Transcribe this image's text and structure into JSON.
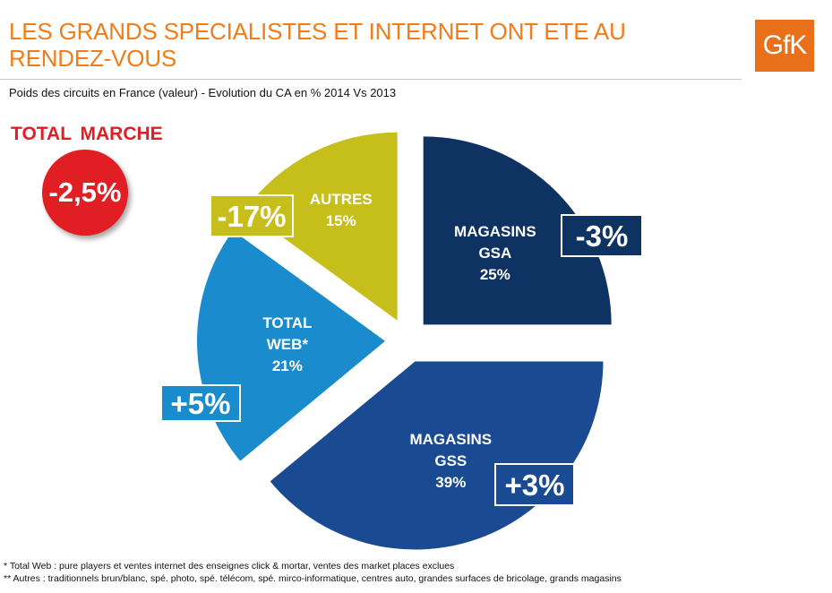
{
  "header": {
    "title_line1": "LES GRANDS SPECIALISTES ET INTERNET ONT ETE AU",
    "title_line2": "RENDEZ-VOUS",
    "logo_text": "GfK",
    "subtitle": "Poids des circuits en France (valeur) - Evolution  du CA en % 2014 Vs 2013"
  },
  "total": {
    "label": "TOTAL MARCHE",
    "value": "-2,5%"
  },
  "chart_data": {
    "type": "pie",
    "exploded": true,
    "slices": [
      {
        "label_lines": [
          "MAGASINS",
          "GSA"
        ],
        "share_label": "25%",
        "value": 25,
        "evolution": "-3%",
        "color": "#0e3363"
      },
      {
        "label_lines": [
          "MAGASINS",
          "GSS"
        ],
        "share_label": "39%",
        "value": 39,
        "evolution": "+3%",
        "color": "#1a4a92"
      },
      {
        "label_lines": [
          "TOTAL",
          "WEB*"
        ],
        "share_label": "21%",
        "value": 21,
        "evolution": "+5%",
        "color": "#1a8ccd"
      },
      {
        "label_lines": [
          "AUTRES"
        ],
        "share_label": "15%",
        "value": 15,
        "evolution": "-17%",
        "color": "#c6be1a"
      }
    ]
  },
  "footnotes": [
    "* Total Web : pure players et ventes internet des enseignes click & mortar, ventes des market places exclues",
    "** Autres : traditionnels brun/blanc,  spé. photo, spé. télécom, spé. mirco-informatique,  centres auto, grandes surfaces de bricolage, grands magasins"
  ]
}
